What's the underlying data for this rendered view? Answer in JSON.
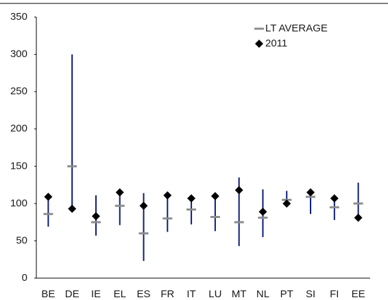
{
  "chart_data": {
    "type": "range",
    "categories": [
      "BE",
      "DE",
      "IE",
      "EL",
      "ES",
      "FR",
      "IT",
      "LU",
      "MT",
      "NL",
      "PT",
      "SI",
      "FI",
      "EE"
    ],
    "low": [
      69,
      93,
      57,
      71,
      23,
      62,
      72,
      63,
      43,
      55,
      100,
      86,
      78,
      81
    ],
    "high": [
      109,
      300,
      111,
      115,
      114,
      112,
      109,
      112,
      135,
      119,
      117,
      118,
      111,
      128
    ],
    "range_color": "#0a1a7a",
    "series": [
      {
        "name": "LT AVERAGE",
        "color": "#8c8c8c",
        "marker": "dash",
        "values": [
          86,
          150,
          75,
          97,
          60,
          80,
          92,
          82,
          75,
          81,
          105,
          109,
          95,
          100
        ]
      },
      {
        "name": "2011",
        "color": "#000000",
        "marker": "diamond",
        "values": [
          109,
          93,
          83,
          115,
          97,
          111,
          107,
          110,
          118,
          89,
          100,
          115,
          107,
          81
        ]
      }
    ],
    "ylim": [
      0,
      350
    ],
    "yticks": [
      0,
      50,
      100,
      150,
      200,
      250,
      300,
      350
    ],
    "grid": false,
    "legend": "upper right"
  }
}
